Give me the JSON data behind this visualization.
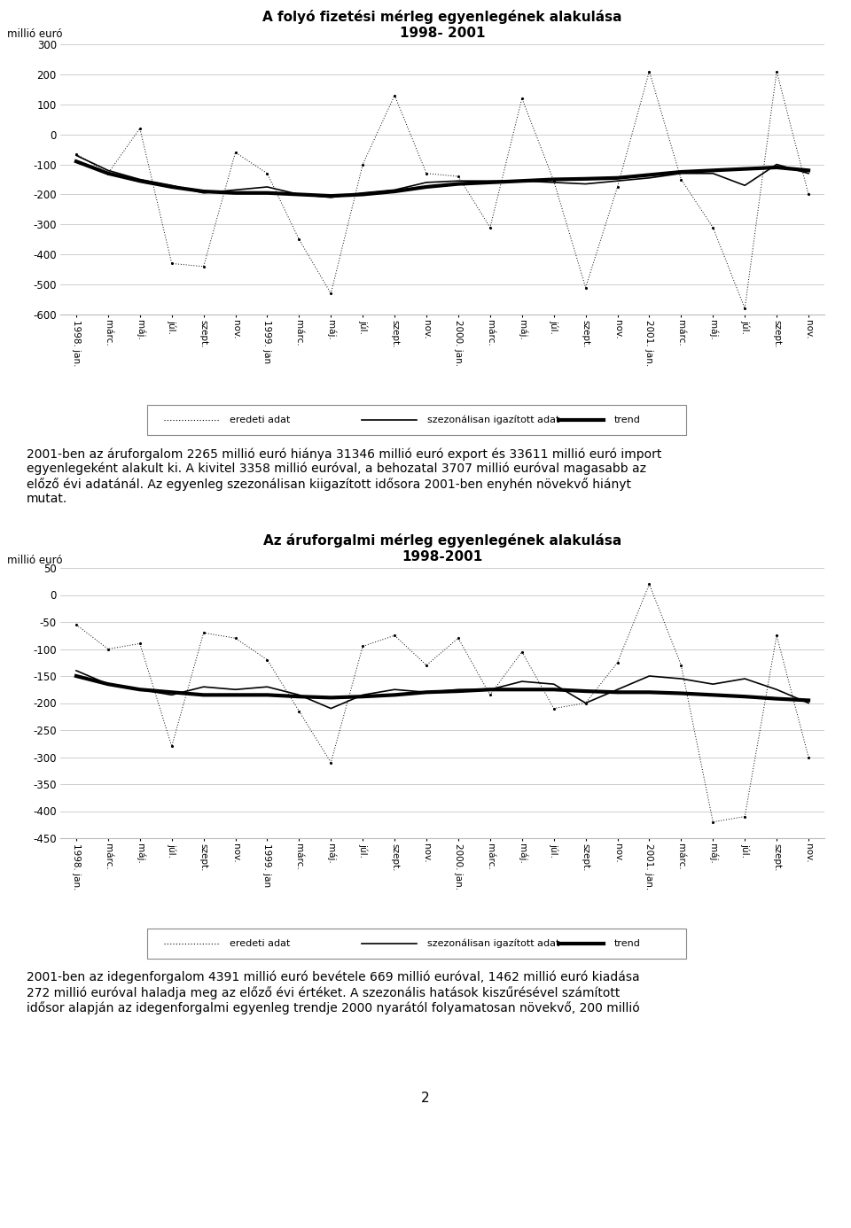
{
  "chart1_title": "A folyó fizetési mérleg egyenlegének alakulása",
  "chart1_subtitle": "1998- 2001",
  "chart2_title": "Az áruforgalmi mérleg egyenlegének alakulása",
  "chart2_subtitle": "1998-2001",
  "ylabel": "millió euró",
  "legend_labels": [
    "eredeti adat",
    "szezonálisan igazított adat",
    "trend"
  ],
  "x_labels": [
    "1998. jan.",
    "márc.",
    "máj.",
    "júl.",
    "szept.",
    "nov.",
    "1999. jan",
    "márc.",
    "máj.",
    "júl.",
    "szept.",
    "nov.",
    "2000. jan.",
    "márc.",
    "máj.",
    "júl.",
    "szept.",
    "nov.",
    "2001. jan.",
    "márc.",
    "máj.",
    "júl.",
    "szept.",
    "nov."
  ],
  "chart1_ylim": [
    -600,
    300
  ],
  "chart1_yticks": [
    -600,
    -500,
    -400,
    -300,
    -200,
    -100,
    0,
    100,
    200,
    300
  ],
  "chart2_ylim": [
    -450,
    50
  ],
  "chart2_yticks": [
    -450,
    -400,
    -350,
    -300,
    -250,
    -200,
    -150,
    -100,
    -50,
    0,
    50
  ],
  "chart1_eredeti": [
    -65,
    -130,
    20,
    -430,
    -440,
    -60,
    -130,
    -350,
    -530,
    -100,
    130,
    -130,
    -140,
    -310,
    120,
    -155,
    -510,
    -175,
    210,
    -150,
    -310,
    -580,
    210,
    -200
  ],
  "chart1_szezonalis": [
    -70,
    -120,
    -150,
    -170,
    -195,
    -185,
    -175,
    -200,
    -210,
    -195,
    -185,
    -160,
    -155,
    -155,
    -155,
    -160,
    -165,
    -155,
    -145,
    -130,
    -130,
    -170,
    -100,
    -130
  ],
  "chart1_trend": [
    -90,
    -130,
    -155,
    -175,
    -190,
    -195,
    -195,
    -200,
    -205,
    -200,
    -190,
    -175,
    -165,
    -160,
    -155,
    -150,
    -148,
    -145,
    -135,
    -125,
    -120,
    -115,
    -110,
    -120
  ],
  "chart2_eredeti": [
    -55,
    -100,
    -90,
    -280,
    -70,
    -80,
    -120,
    -215,
    -310,
    -95,
    -75,
    -130,
    -80,
    -185,
    -105,
    -210,
    -200,
    -125,
    20,
    -130,
    -420,
    -410,
    -75,
    -300
  ],
  "chart2_szezonalis": [
    -140,
    -165,
    -175,
    -185,
    -170,
    -175,
    -170,
    -185,
    -210,
    -185,
    -175,
    -180,
    -175,
    -175,
    -160,
    -165,
    -200,
    -175,
    -150,
    -155,
    -165,
    -155,
    -175,
    -200
  ],
  "chart2_trend": [
    -150,
    -165,
    -175,
    -180,
    -185,
    -185,
    -185,
    -188,
    -190,
    -188,
    -185,
    -180,
    -178,
    -175,
    -175,
    -175,
    -178,
    -180,
    -180,
    -182,
    -185,
    -188,
    -192,
    -195
  ],
  "text1": "2001-ben az áruforgalom 2265 millió euró hiánya 31346 millió euró export és 33611 millió euró import\negyenlegeként alakult ki. A kivitel 3358 millió euróval, a behozatal 3707 millió euróval magasabb az\nelőző évi adatánál. Az egyenleg szezonálisan kiigazított idősora 2001-ben enyhén növekvő hiányt\nmutat.",
  "text2": "2001-ben az idegenforgalom 4391 millió euró bevétele 669 millió euróval, 1462 millió euró kiadása\n272 millió euróval haladja meg az előző évi értéket. A szezonális hatások kiszűrésével számított\nidősor alapján az idegenforgalmi egyenleg trendje 2000 nyarától folyamatosan növekvő, 200 millió",
  "page_number": "2",
  "background_color": "#ffffff"
}
